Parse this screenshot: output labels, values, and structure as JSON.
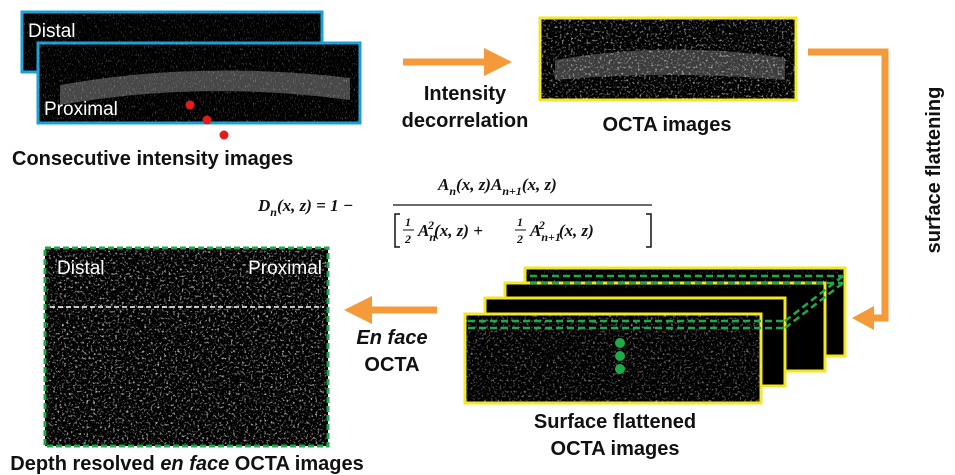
{
  "intensity_images": {
    "back_label": "Distal",
    "front_label": "Proximal",
    "caption": "Consecutive intensity images"
  },
  "step1": {
    "lines": [
      "Intensity",
      "decorrelation"
    ]
  },
  "octa": {
    "caption": "OCTA images"
  },
  "step2": {
    "label": "surface flattening"
  },
  "equation": {
    "lhs": [
      "D",
      "n",
      "(x, z) = 1 −"
    ],
    "numerator": [
      "A",
      "n",
      "(x, z)A",
      "n+1",
      "(x, z)"
    ],
    "denominator": [
      "1",
      "2",
      "A",
      "n",
      "2",
      "(x, z) +",
      "1",
      "2",
      "A",
      "n+1",
      "2",
      "(x, z)"
    ]
  },
  "flattened": {
    "lines": [
      "Surface flattened",
      "OCTA images"
    ]
  },
  "step3": {
    "lines": [
      "En face",
      "OCTA"
    ]
  },
  "en_face": {
    "left_label": "Distal",
    "right_label": "Proximal",
    "caption": [
      "Depth resolved ",
      "en face",
      " OCTA images"
    ]
  }
}
